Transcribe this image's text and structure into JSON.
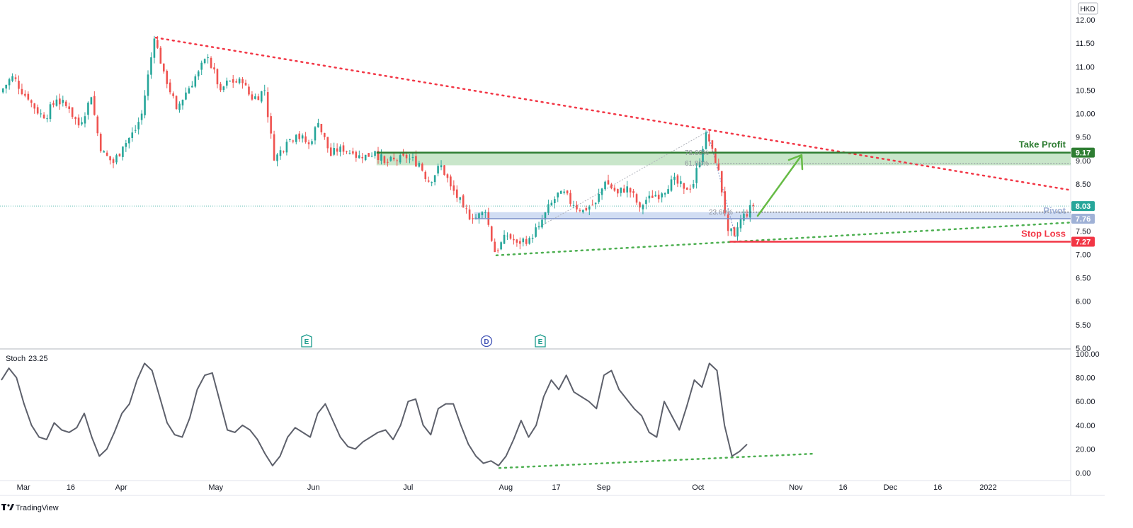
{
  "currency": "HKD",
  "brand": "TradingView",
  "chart_data": {
    "type": "candlestick",
    "yticks": [
      "12.00",
      "11.50",
      "11.00",
      "10.50",
      "10.00",
      "9.50",
      "9.00",
      "8.50",
      "8.00",
      "7.50",
      "7.00",
      "6.50",
      "6.00",
      "5.50",
      "5.00"
    ],
    "ylim": [
      5.0,
      12.2
    ],
    "xticks": [
      "Mar",
      "16",
      "Apr",
      "May",
      "Jun",
      "Jul",
      "Aug",
      "17",
      "Sep",
      "Oct",
      "Nov",
      "16",
      "Dec",
      "16",
      "2022"
    ],
    "price_series": [
      {
        "date": "2021-02-22",
        "close": 10.45
      },
      {
        "date": "2021-02-26",
        "close": 10.8
      },
      {
        "date": "2021-03-03",
        "close": 10.3
      },
      {
        "date": "2021-03-08",
        "close": 9.9
      },
      {
        "date": "2021-03-12",
        "close": 10.3
      },
      {
        "date": "2021-03-16",
        "close": 10.1
      },
      {
        "date": "2021-03-19",
        "close": 9.75
      },
      {
        "date": "2021-03-23",
        "close": 10.35
      },
      {
        "date": "2021-03-26",
        "close": 9.2
      },
      {
        "date": "2021-03-30",
        "close": 8.95
      },
      {
        "date": "2021-04-02",
        "close": 9.3
      },
      {
        "date": "2021-04-06",
        "close": 9.65
      },
      {
        "date": "2021-04-08",
        "close": 10.0
      },
      {
        "date": "2021-04-12",
        "close": 11.6
      },
      {
        "date": "2021-04-15",
        "close": 10.9
      },
      {
        "date": "2021-04-19",
        "close": 10.1
      },
      {
        "date": "2021-04-22",
        "close": 10.45
      },
      {
        "date": "2021-04-26",
        "close": 10.9
      },
      {
        "date": "2021-04-29",
        "close": 11.2
      },
      {
        "date": "2021-05-03",
        "close": 10.5
      },
      {
        "date": "2021-05-06",
        "close": 10.7
      },
      {
        "date": "2021-05-10",
        "close": 10.65
      },
      {
        "date": "2021-05-13",
        "close": 10.3
      },
      {
        "date": "2021-05-17",
        "close": 10.5
      },
      {
        "date": "2021-05-20",
        "close": 9.0
      },
      {
        "date": "2021-05-24",
        "close": 9.4
      },
      {
        "date": "2021-05-27",
        "close": 9.55
      },
      {
        "date": "2021-05-31",
        "close": 9.35
      },
      {
        "date": "2021-06-03",
        "close": 9.8
      },
      {
        "date": "2021-06-07",
        "close": 9.1
      },
      {
        "date": "2021-06-10",
        "close": 9.3
      },
      {
        "date": "2021-06-14",
        "close": 9.15
      },
      {
        "date": "2021-06-17",
        "close": 9.05
      },
      {
        "date": "2021-06-21",
        "close": 9.2
      },
      {
        "date": "2021-06-24",
        "close": 8.95
      },
      {
        "date": "2021-06-28",
        "close": 9.0
      },
      {
        "date": "2021-07-01",
        "close": 9.05
      },
      {
        "date": "2021-07-05",
        "close": 8.95
      },
      {
        "date": "2021-07-08",
        "close": 8.55
      },
      {
        "date": "2021-07-12",
        "close": 8.9
      },
      {
        "date": "2021-07-15",
        "close": 8.45
      },
      {
        "date": "2021-07-19",
        "close": 8.0
      },
      {
        "date": "2021-07-22",
        "close": 7.75
      },
      {
        "date": "2021-07-26",
        "close": 7.9
      },
      {
        "date": "2021-07-29",
        "close": 7.05
      },
      {
        "date": "2021-08-02",
        "close": 7.4
      },
      {
        "date": "2021-08-05",
        "close": 7.25
      },
      {
        "date": "2021-08-09",
        "close": 7.35
      },
      {
        "date": "2021-08-12",
        "close": 7.6
      },
      {
        "date": "2021-08-16",
        "close": 8.1
      },
      {
        "date": "2021-08-19",
        "close": 8.35
      },
      {
        "date": "2021-08-23",
        "close": 8.05
      },
      {
        "date": "2021-08-26",
        "close": 7.95
      },
      {
        "date": "2021-08-30",
        "close": 8.1
      },
      {
        "date": "2021-09-02",
        "close": 8.55
      },
      {
        "date": "2021-09-06",
        "close": 8.3
      },
      {
        "date": "2021-09-09",
        "close": 8.45
      },
      {
        "date": "2021-09-13",
        "close": 8.0
      },
      {
        "date": "2021-09-16",
        "close": 8.25
      },
      {
        "date": "2021-09-20",
        "close": 8.3
      },
      {
        "date": "2021-09-23",
        "close": 8.6
      },
      {
        "date": "2021-09-27",
        "close": 8.4
      },
      {
        "date": "2021-09-30",
        "close": 8.5
      },
      {
        "date": "2021-10-04",
        "close": 9.6
      },
      {
        "date": "2021-10-06",
        "close": 9.25
      },
      {
        "date": "2021-10-08",
        "close": 8.8
      },
      {
        "date": "2021-10-11",
        "close": 7.5
      },
      {
        "date": "2021-10-13",
        "close": 7.4
      },
      {
        "date": "2021-10-15",
        "close": 7.75
      },
      {
        "date": "2021-10-19",
        "close": 8.03
      }
    ],
    "levels": [
      {
        "name": "Take Profit",
        "value": 9.17,
        "color": "#2e7d32",
        "tag": "9.17"
      },
      {
        "name": "Pivot",
        "value": 7.76,
        "color": "#9fb1d6",
        "tag": "7.76"
      },
      {
        "name": "Stop Loss",
        "value": 7.27,
        "color": "#f23645",
        "tag": "7.27"
      },
      {
        "name": "last",
        "value": 8.03,
        "color": "#26a69a",
        "tag": "8.03"
      }
    ],
    "fib_labels": [
      "78.60%",
      "61.80%",
      "23.60%"
    ],
    "events": [
      "E",
      "D",
      "E"
    ],
    "colors": {
      "up": "#26a69a",
      "down": "#ef5350",
      "downtrend": "#f23645",
      "support": "#4caf50",
      "tp_zone": "#a5d6a7",
      "pivot_zone": "#c5d4f0"
    },
    "stoch": {
      "title": "Stoch",
      "value": "23.25",
      "yticks": [
        "100.00",
        "80.00",
        "60.00",
        "40.00",
        "20.00",
        "0.00"
      ],
      "ylim": [
        0,
        100
      ],
      "values": [
        78,
        88,
        80,
        58,
        40,
        30,
        28,
        42,
        36,
        34,
        38,
        50,
        30,
        14,
        20,
        34,
        50,
        58,
        78,
        92,
        86,
        64,
        42,
        32,
        30,
        46,
        70,
        82,
        84,
        60,
        36,
        34,
        40,
        36,
        28,
        16,
        6,
        14,
        30,
        38,
        34,
        30,
        50,
        58,
        44,
        30,
        22,
        20,
        26,
        30,
        34,
        36,
        28,
        40,
        60,
        62,
        40,
        32,
        54,
        58,
        58,
        40,
        24,
        14,
        8,
        10,
        6,
        14,
        28,
        44,
        30,
        40,
        64,
        78,
        70,
        82,
        68,
        64,
        60,
        54,
        82,
        86,
        70,
        62,
        54,
        48,
        34,
        30,
        60,
        48,
        36,
        56,
        78,
        72,
        92,
        86,
        40,
        14,
        18,
        24
      ]
    }
  }
}
